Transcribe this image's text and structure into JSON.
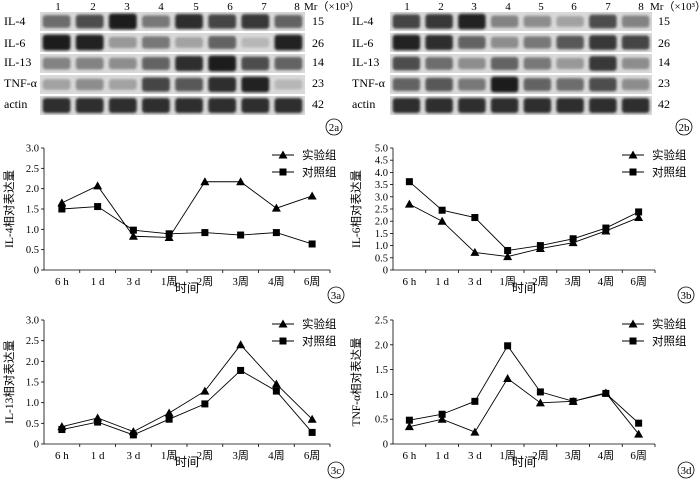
{
  "blots": [
    {
      "id": "2a",
      "label": "2a",
      "lanes": [
        "1",
        "2",
        "3",
        "4",
        "5",
        "6",
        "7",
        "8"
      ],
      "mr_label": "Mr（×10³）",
      "rows": [
        {
          "name": "IL-4",
          "mr": "15",
          "bands": [
            0.55,
            0.7,
            0.95,
            0.5,
            0.85,
            0.75,
            0.8,
            0.6
          ]
        },
        {
          "name": "IL-6",
          "mr": "26",
          "bands": [
            0.95,
            0.9,
            0.35,
            0.5,
            0.3,
            0.6,
            0.2,
            0.9
          ]
        },
        {
          "name": "IL-13",
          "mr": "14",
          "bands": [
            0.45,
            0.45,
            0.4,
            0.6,
            0.85,
            0.95,
            0.7,
            0.6
          ]
        },
        {
          "name": "TNF-α",
          "mr": "23",
          "bands": [
            0.3,
            0.4,
            0.3,
            0.75,
            0.65,
            0.85,
            0.9,
            0.2
          ]
        },
        {
          "name": "actin",
          "mr": "42",
          "bands": [
            0.85,
            0.85,
            0.85,
            0.85,
            0.85,
            0.85,
            0.85,
            0.85
          ]
        }
      ]
    },
    {
      "id": "2b",
      "label": "2b",
      "lanes": [
        "1",
        "2",
        "3",
        "4",
        "5",
        "6",
        "7",
        "8"
      ],
      "mr_label": "Mr（×10³）",
      "rows": [
        {
          "name": "IL-4",
          "mr": "15",
          "bands": [
            0.75,
            0.8,
            0.9,
            0.45,
            0.4,
            0.3,
            0.7,
            0.45
          ]
        },
        {
          "name": "IL-6",
          "mr": "26",
          "bands": [
            0.9,
            0.85,
            0.6,
            0.4,
            0.5,
            0.65,
            0.8,
            0.75
          ]
        },
        {
          "name": "IL-13",
          "mr": "14",
          "bands": [
            0.7,
            0.55,
            0.4,
            0.6,
            0.5,
            0.35,
            0.8,
            0.4
          ]
        },
        {
          "name": "TNF-α",
          "mr": "23",
          "bands": [
            0.6,
            0.65,
            0.5,
            0.95,
            0.6,
            0.55,
            0.7,
            0.4
          ]
        },
        {
          "name": "actin",
          "mr": "42",
          "bands": [
            0.85,
            0.85,
            0.85,
            0.85,
            0.85,
            0.85,
            0.85,
            0.85
          ]
        }
      ]
    }
  ],
  "chart_data": [
    {
      "id": "3a",
      "label": "3a",
      "type": "line",
      "categories": [
        "6 h",
        "1 d",
        "3 d",
        "1周",
        "2周",
        "3周",
        "4周",
        "6周"
      ],
      "xlabel": "时间",
      "ylabel": "IL-4相对表达量",
      "ylim": [
        0,
        3.0
      ],
      "yticks": [
        0,
        0.5,
        1.0,
        1.5,
        2.0,
        2.5,
        3.0
      ],
      "series": [
        {
          "name": "实验组",
          "marker": "triangle",
          "values": [
            1.65,
            2.07,
            0.83,
            0.8,
            2.17,
            2.17,
            1.52,
            1.82
          ]
        },
        {
          "name": "对照组",
          "marker": "square",
          "values": [
            1.5,
            1.56,
            0.98,
            0.89,
            0.92,
            0.86,
            0.92,
            0.64
          ]
        }
      ]
    },
    {
      "id": "3b",
      "label": "3b",
      "type": "line",
      "categories": [
        "6 h",
        "1 d",
        "3 d",
        "1周",
        "2周",
        "3周",
        "4周",
        "6周"
      ],
      "xlabel": "时间",
      "ylabel": "IL-6相对表达量",
      "ylim": [
        0,
        5.0
      ],
      "yticks": [
        0,
        0.5,
        1.0,
        1.5,
        2.0,
        2.5,
        3.0,
        3.5,
        4.0,
        4.5,
        5.0
      ],
      "series": [
        {
          "name": "实验组",
          "marker": "triangle",
          "values": [
            2.7,
            2.0,
            0.72,
            0.55,
            0.88,
            1.12,
            1.6,
            2.15
          ]
        },
        {
          "name": "对照组",
          "marker": "square",
          "values": [
            3.62,
            2.45,
            2.15,
            0.8,
            1.0,
            1.28,
            1.72,
            2.38
          ]
        }
      ]
    },
    {
      "id": "3c",
      "label": "3c",
      "type": "line",
      "categories": [
        "6 h",
        "1 d",
        "3 d",
        "1周",
        "2周",
        "3周",
        "4周",
        "6周"
      ],
      "xlabel": "时间",
      "ylabel": "IL-13相对表达量",
      "ylim": [
        0,
        3.0
      ],
      "yticks": [
        0,
        0.5,
        1.0,
        1.5,
        2.0,
        2.5,
        3.0
      ],
      "series": [
        {
          "name": "实验组",
          "marker": "triangle",
          "values": [
            0.42,
            0.63,
            0.3,
            0.75,
            1.28,
            2.4,
            1.45,
            0.6
          ]
        },
        {
          "name": "对照组",
          "marker": "square",
          "values": [
            0.35,
            0.53,
            0.22,
            0.6,
            0.97,
            1.78,
            1.28,
            0.28
          ]
        }
      ]
    },
    {
      "id": "3d",
      "label": "3d",
      "type": "line",
      "categories": [
        "6 h",
        "1 d",
        "3 d",
        "1周",
        "2周",
        "3周",
        "4周",
        "6周"
      ],
      "xlabel": "时间",
      "ylabel": "TNF-α相对表达量",
      "ylim": [
        0,
        2.5
      ],
      "yticks": [
        0,
        0.5,
        1.0,
        1.5,
        2.0,
        2.5
      ],
      "series": [
        {
          "name": "实验组",
          "marker": "triangle",
          "values": [
            0.35,
            0.5,
            0.24,
            1.32,
            0.83,
            0.86,
            1.03,
            0.2
          ]
        },
        {
          "name": "对照组",
          "marker": "square",
          "values": [
            0.48,
            0.6,
            0.86,
            1.98,
            1.05,
            0.86,
            1.02,
            0.42
          ]
        }
      ]
    }
  ]
}
